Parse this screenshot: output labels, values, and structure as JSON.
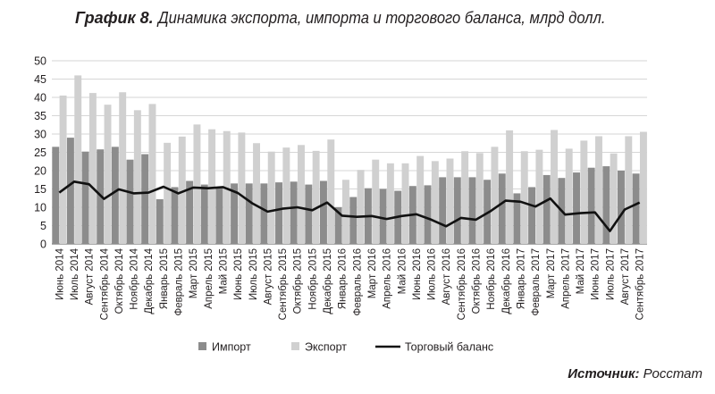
{
  "header": {
    "title_lead": "График 8.",
    "title_rest": "Динамика экспорта, импорта и торгового баланса, млрд долл."
  },
  "footer": {
    "source_label": "Источник:",
    "source_value": "Росстат"
  },
  "colors": {
    "import": "#8c8c8c",
    "export": "#d0d0d0",
    "balance": "#111111",
    "grid": "#d6d6d6"
  },
  "chart_data": {
    "type": "bar",
    "title": "Динамика экспорта, импорта и торгового баланса, млрд долл.",
    "xlabel": "",
    "ylabel": "",
    "ylim": [
      0,
      50
    ],
    "yticks": [
      0,
      5,
      10,
      15,
      20,
      25,
      30,
      35,
      40,
      45,
      50
    ],
    "grid": true,
    "legend": "bottom",
    "categories": [
      "Июнь 2014",
      "Июль 2014",
      "Август 2014",
      "Сентябрь 2014",
      "Октябрь 2014",
      "Ноябрь 2014",
      "Декабрь 2014",
      "Январь 2015",
      "Февраль 2015",
      "Март 2015",
      "Апрель 2015",
      "Май 2015",
      "Июнь 2015",
      "Июль 2015",
      "Август 2015",
      "Сентябрь 2015",
      "Октябрь 2015",
      "Ноябрь 2015",
      "Декабрь 2015",
      "Январь 2016",
      "Февраль 2016",
      "Март 2016",
      "Апрель 2016",
      "Май 2016",
      "Июнь 2016",
      "Июль 2016",
      "Август 2016",
      "Сентябрь 2016",
      "Октябрь 2016",
      "Ноябрь 2016",
      "Декабрь 2016",
      "Январь 2017",
      "Февраль 2017",
      "Март 2017",
      "Апрель 2017",
      "Май 2017",
      "Июнь 2017",
      "Июль 2017",
      "Август 2017",
      "Сентябрь 2017"
    ],
    "series": [
      {
        "name": "Импорт",
        "type": "bar",
        "values": [
          26.5,
          29,
          25.2,
          25.8,
          26.5,
          23,
          24.5,
          12.2,
          15.5,
          17.2,
          16.2,
          15.2,
          16.5,
          16.5,
          16.5,
          16.8,
          17,
          16.2,
          17.2,
          10,
          12.8,
          15.2,
          15,
          14.5,
          15.8,
          16,
          18.2,
          18.2,
          18.2,
          17.5,
          19.2,
          13.8,
          15.5,
          18.8,
          18,
          19.5,
          20.8,
          21.2,
          20,
          19.2
        ]
      },
      {
        "name": "Экспорт",
        "type": "bar",
        "values": [
          40.5,
          46,
          41.2,
          38,
          41.4,
          36.5,
          38.2,
          27.6,
          29.3,
          32.6,
          31.3,
          30.8,
          30.4,
          27.5,
          25.2,
          26.3,
          27,
          25.4,
          28.5,
          17.5,
          20.2,
          23,
          22,
          22,
          24,
          22.6,
          23.3,
          25.3,
          24.8,
          26.5,
          31,
          25.3,
          25.7,
          31.1,
          26,
          28.2,
          29.4,
          24.7,
          29.4,
          30.6
        ]
      },
      {
        "name": "Торговый баланс",
        "type": "line",
        "values": [
          14,
          17,
          16.3,
          12.3,
          14.9,
          13.8,
          14,
          15.6,
          13.8,
          15.4,
          15.2,
          15.5,
          13.9,
          11,
          8.8,
          9.6,
          10,
          9.2,
          11.3,
          7.7,
          7.4,
          7.6,
          6.8,
          7.6,
          8.1,
          6.6,
          4.8,
          7.1,
          6.6,
          9,
          11.8,
          11.5,
          10.2,
          12.4,
          8,
          8.4,
          8.6,
          3.5,
          9.4,
          11.3
        ]
      }
    ]
  }
}
